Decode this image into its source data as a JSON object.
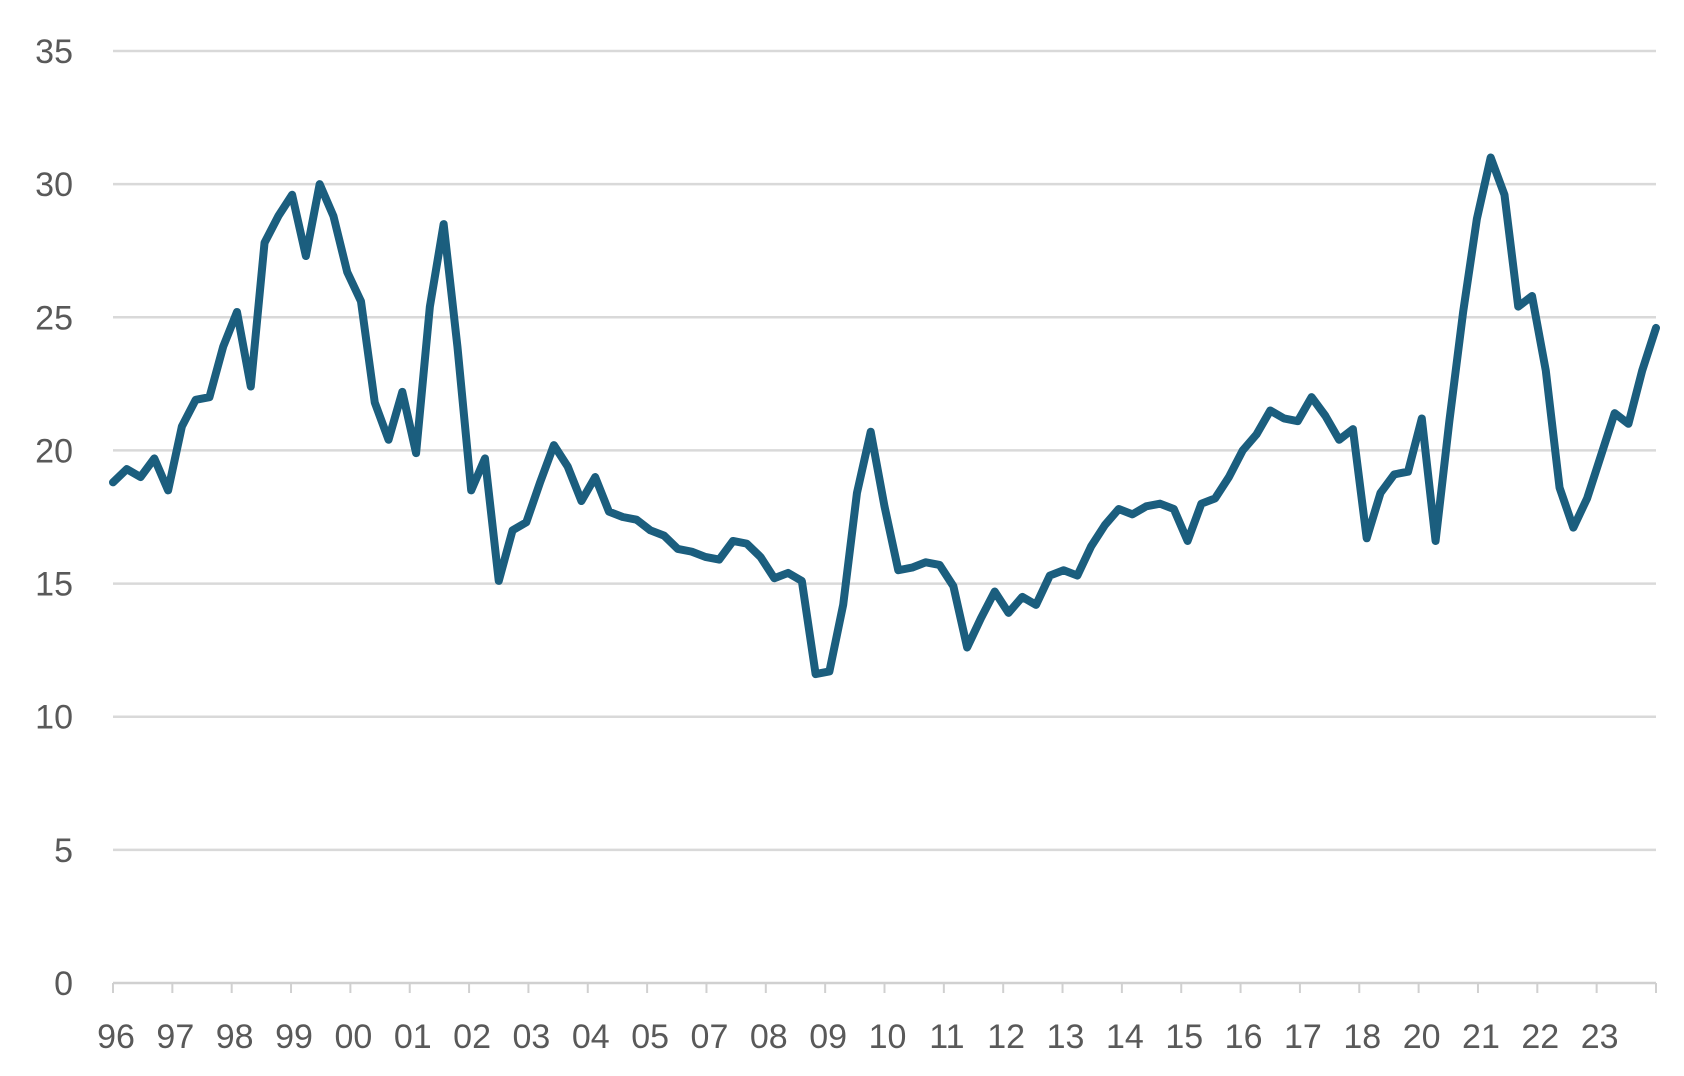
{
  "chart_data": {
    "type": "line",
    "title": "",
    "xlabel": "",
    "ylabel": "",
    "ylim": [
      0,
      35
    ],
    "y_ticks": [
      0,
      5,
      10,
      15,
      20,
      25,
      30,
      35
    ],
    "x_tick_labels": [
      "96",
      "97",
      "98",
      "99",
      "00",
      "01",
      "02",
      "03",
      "04",
      "05",
      "07",
      "08",
      "09",
      "10",
      "11",
      "12",
      "13",
      "14",
      "15",
      "16",
      "17",
      "18",
      "20",
      "21",
      "22",
      "23"
    ],
    "grid": "horizontal",
    "legend": "none",
    "colors": {
      "series": "#1b5e7e",
      "grid": "#d9d9d9",
      "axis": "#d0d0d0",
      "tick_label": "#595959"
    },
    "series": [
      {
        "values": [
          18.8,
          19.3,
          19.0,
          19.7,
          18.5,
          20.9,
          21.9,
          22.0,
          23.9,
          25.2,
          22.4,
          27.8,
          28.8,
          29.6,
          27.3,
          30.0,
          28.8,
          26.7,
          25.6,
          21.8,
          20.4,
          22.2,
          19.9,
          25.4,
          28.5,
          23.9,
          18.5,
          19.7,
          15.1,
          17.0,
          17.3,
          18.8,
          20.2,
          19.4,
          18.1,
          19.0,
          17.7,
          17.5,
          17.4,
          17.0,
          16.8,
          16.3,
          16.2,
          16.0,
          15.9,
          16.6,
          16.5,
          16.0,
          15.2,
          15.4,
          15.1,
          11.6,
          11.7,
          14.2,
          18.4,
          20.7,
          17.9,
          15.5,
          15.6,
          15.8,
          15.7,
          14.9,
          12.6,
          13.7,
          14.7,
          13.9,
          14.5,
          14.2,
          15.3,
          15.5,
          15.3,
          16.4,
          17.2,
          17.8,
          17.6,
          17.9,
          18.0,
          17.8,
          16.6,
          18.0,
          18.2,
          19.0,
          20.0,
          20.6,
          21.5,
          21.2,
          21.1,
          22.0,
          21.3,
          20.4,
          20.8,
          16.7,
          18.4,
          19.1,
          19.2,
          21.2,
          16.6,
          21.1,
          25.2,
          28.7,
          31.0,
          29.6,
          25.4,
          25.8,
          23.0,
          18.6,
          17.1,
          18.2,
          19.8,
          21.4,
          21.0,
          23.0,
          24.6
        ]
      }
    ]
  }
}
